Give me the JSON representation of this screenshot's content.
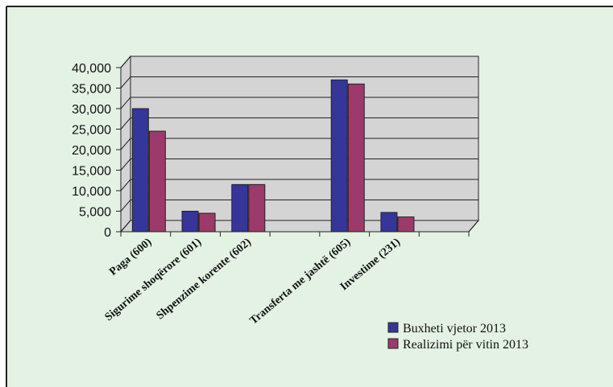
{
  "colors": {
    "background": "#e4f2e4",
    "plot_wall": "#d4d4d4",
    "series_1": "#35359a",
    "series_2": "#9c3a6c"
  },
  "chart_data": {
    "type": "bar",
    "categories": [
      "Paga (600)",
      "Sigurime shoqërore (601)",
      "Shpenzime korente (602)",
      "",
      "Transferta me jashtë (605)",
      "Investime (231)",
      ""
    ],
    "series": [
      {
        "name": "Buxheti vjetor 2013",
        "values": [
          30000,
          5000,
          11500,
          0,
          37000,
          4700,
          0
        ]
      },
      {
        "name": "Realizimi për vitin 2013",
        "values": [
          24500,
          4500,
          11500,
          0,
          36000,
          3600,
          0
        ]
      }
    ],
    "ylim": [
      0,
      40000
    ],
    "yticks": [
      "0",
      "5,000",
      "10,000",
      "15,000",
      "20,000",
      "25,000",
      "30,000",
      "35,000",
      "40,000"
    ],
    "grid": true,
    "legend_position": "bottom-right"
  }
}
